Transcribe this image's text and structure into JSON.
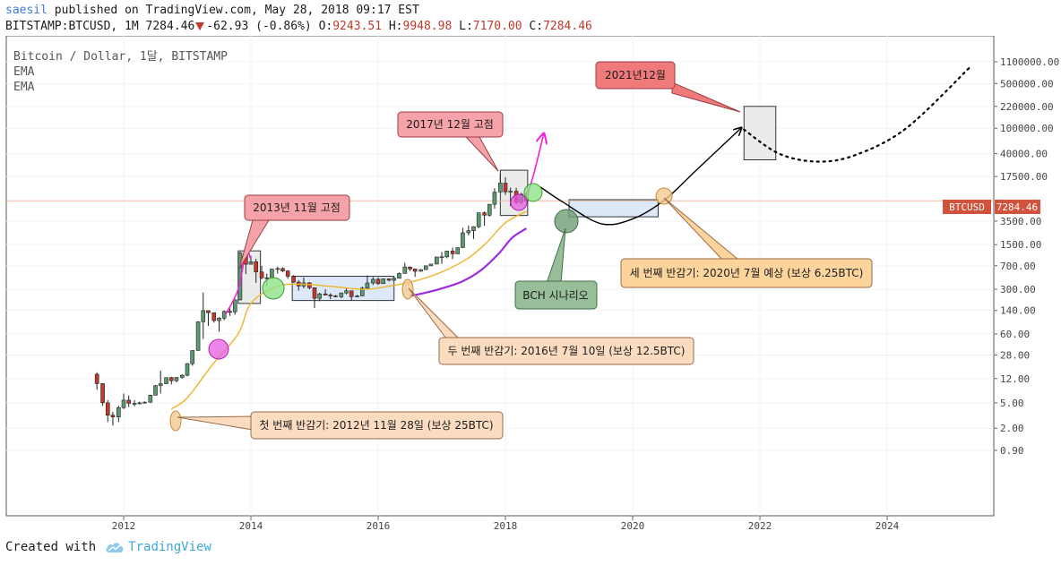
{
  "header": {
    "author": "saesil",
    "published_text": "published on TradingView.com, May 28, 2018 09:17 EST",
    "symbol_line": "BITSTAMP:BTCUSD, 1M 7284.46",
    "change": "-62.93 (-0.86%)",
    "o_label": "O:",
    "o_value": "9243.51",
    "h_label": "H:",
    "h_value": "9948.98",
    "l_label": "L:",
    "l_value": "7170.00",
    "c_label": "C:",
    "c_value": "7284.46"
  },
  "legend": {
    "title": "Bitcoin / Dollar, 1달, BITSTAMP",
    "ema1": "EMA",
    "ema2": "EMA"
  },
  "price_tag": {
    "symbol": "BTCUSD",
    "value": "7284.46"
  },
  "annotations": {
    "peak_2013": "2013년 11월 고점",
    "peak_2017": "2017년 12월 고점",
    "target_2021": "2021년12월",
    "halving_1": "첫 번째 반감기: 2012년 11월 28일 (보상 25BTC)",
    "halving_2": "두 번째 반감기: 2016년 7월 10일 (보상 12.5BTC)",
    "halving_3": "세 번째 반감기: 2020년 7월 예상 (보상 6.25BTC)",
    "bch": "BCH 시나리오"
  },
  "colors": {
    "up": "#5b9a6f",
    "down": "#c0392b",
    "ema_fast": "#f0b429",
    "ema_slow": "#9d2be0",
    "projection": "#ee22dd",
    "price_line": "#f2b8a0",
    "price_tag_bg": "#d2533c"
  },
  "footer": {
    "created_with": "Created with",
    "brand": "TradingView"
  },
  "chart_data": {
    "type": "candlestick",
    "title": "Bitcoin / Dollar, 1달, BITSTAMP",
    "y_scale": "log",
    "y_ticks": [
      "1100000.00",
      "500000.00",
      "220000.00",
      "100000.00",
      "40000.00",
      "17500.00",
      "7284.46",
      "3500.00",
      "1500.00",
      "700.00",
      "300.00",
      "140.00",
      "60.00",
      "28.00",
      "12.00",
      "5.00",
      "2.00",
      "0.90"
    ],
    "x_ticks": [
      "2012",
      "2014",
      "2016",
      "2018",
      "2020",
      "2022",
      "2024"
    ],
    "last_price": 7284.46,
    "candles": [
      {
        "t": 2011.58,
        "o": 14,
        "h": 15,
        "l": 8,
        "c": 10
      },
      {
        "t": 2011.67,
        "o": 10,
        "h": 10,
        "l": 4.5,
        "c": 5
      },
      {
        "t": 2011.75,
        "o": 5,
        "h": 5.5,
        "l": 2.5,
        "c": 3.2
      },
      {
        "t": 2011.83,
        "o": 3.2,
        "h": 3.6,
        "l": 2.2,
        "c": 3
      },
      {
        "t": 2011.92,
        "o": 3,
        "h": 4.5,
        "l": 2.5,
        "c": 4.2
      },
      {
        "t": 2012.0,
        "o": 4.2,
        "h": 7,
        "l": 4,
        "c": 5.5
      },
      {
        "t": 2012.08,
        "o": 5.5,
        "h": 6.5,
        "l": 4.3,
        "c": 4.9
      },
      {
        "t": 2012.17,
        "o": 4.9,
        "h": 5.5,
        "l": 4.4,
        "c": 4.9
      },
      {
        "t": 2012.25,
        "o": 4.9,
        "h": 5.2,
        "l": 4.7,
        "c": 5.0
      },
      {
        "t": 2012.33,
        "o": 5.0,
        "h": 5.3,
        "l": 4.9,
        "c": 5.1
      },
      {
        "t": 2012.42,
        "o": 5.1,
        "h": 6.7,
        "l": 5.0,
        "c": 6.6
      },
      {
        "t": 2012.5,
        "o": 6.6,
        "h": 9.5,
        "l": 6.5,
        "c": 9.3
      },
      {
        "t": 2012.58,
        "o": 9.3,
        "h": 16,
        "l": 7,
        "c": 10
      },
      {
        "t": 2012.67,
        "o": 10,
        "h": 12.5,
        "l": 9.8,
        "c": 12.4
      },
      {
        "t": 2012.75,
        "o": 12.4,
        "h": 12.8,
        "l": 9.7,
        "c": 11.1
      },
      {
        "t": 2012.83,
        "o": 11.1,
        "h": 12.6,
        "l": 10.5,
        "c": 12.5
      },
      {
        "t": 2012.92,
        "o": 12.5,
        "h": 14,
        "l": 12,
        "c": 13.5
      },
      {
        "t": 2013.0,
        "o": 13.5,
        "h": 21,
        "l": 13,
        "c": 20.5
      },
      {
        "t": 2013.08,
        "o": 20.5,
        "h": 33,
        "l": 19,
        "c": 33
      },
      {
        "t": 2013.17,
        "o": 33,
        "h": 95,
        "l": 33,
        "c": 93
      },
      {
        "t": 2013.25,
        "o": 93,
        "h": 266,
        "l": 50,
        "c": 139
      },
      {
        "t": 2013.33,
        "o": 139,
        "h": 140,
        "l": 80,
        "c": 129
      },
      {
        "t": 2013.42,
        "o": 129,
        "h": 130,
        "l": 90,
        "c": 97
      },
      {
        "t": 2013.5,
        "o": 97,
        "h": 110,
        "l": 65,
        "c": 106
      },
      {
        "t": 2013.58,
        "o": 106,
        "h": 140,
        "l": 98,
        "c": 135
      },
      {
        "t": 2013.67,
        "o": 135,
        "h": 150,
        "l": 115,
        "c": 133
      },
      {
        "t": 2013.75,
        "o": 133,
        "h": 210,
        "l": 120,
        "c": 205
      },
      {
        "t": 2013.83,
        "o": 205,
        "h": 1160,
        "l": 200,
        "c": 1110
      },
      {
        "t": 2013.92,
        "o": 1110,
        "h": 1160,
        "l": 520,
        "c": 740
      },
      {
        "t": 2014.0,
        "o": 740,
        "h": 1000,
        "l": 740,
        "c": 810
      },
      {
        "t": 2014.08,
        "o": 810,
        "h": 900,
        "l": 380,
        "c": 560
      },
      {
        "t": 2014.17,
        "o": 560,
        "h": 700,
        "l": 430,
        "c": 455
      },
      {
        "t": 2014.25,
        "o": 455,
        "h": 530,
        "l": 340,
        "c": 445
      },
      {
        "t": 2014.33,
        "o": 445,
        "h": 630,
        "l": 440,
        "c": 620
      },
      {
        "t": 2014.42,
        "o": 620,
        "h": 680,
        "l": 530,
        "c": 635
      },
      {
        "t": 2014.5,
        "o": 635,
        "h": 660,
        "l": 560,
        "c": 580
      },
      {
        "t": 2014.58,
        "o": 580,
        "h": 600,
        "l": 440,
        "c": 480
      },
      {
        "t": 2014.67,
        "o": 480,
        "h": 500,
        "l": 380,
        "c": 388
      },
      {
        "t": 2014.75,
        "o": 388,
        "h": 415,
        "l": 285,
        "c": 338
      },
      {
        "t": 2014.83,
        "o": 338,
        "h": 460,
        "l": 310,
        "c": 378
      },
      {
        "t": 2014.92,
        "o": 378,
        "h": 390,
        "l": 300,
        "c": 318
      },
      {
        "t": 2015.0,
        "o": 318,
        "h": 320,
        "l": 152,
        "c": 217
      },
      {
        "t": 2015.08,
        "o": 217,
        "h": 265,
        "l": 195,
        "c": 254
      },
      {
        "t": 2015.17,
        "o": 254,
        "h": 300,
        "l": 240,
        "c": 244
      },
      {
        "t": 2015.25,
        "o": 244,
        "h": 260,
        "l": 210,
        "c": 236
      },
      {
        "t": 2015.33,
        "o": 236,
        "h": 245,
        "l": 225,
        "c": 230
      },
      {
        "t": 2015.42,
        "o": 230,
        "h": 265,
        "l": 218,
        "c": 263
      },
      {
        "t": 2015.5,
        "o": 263,
        "h": 315,
        "l": 250,
        "c": 284
      },
      {
        "t": 2015.58,
        "o": 284,
        "h": 287,
        "l": 200,
        "c": 230
      },
      {
        "t": 2015.67,
        "o": 230,
        "h": 245,
        "l": 225,
        "c": 236
      },
      {
        "t": 2015.75,
        "o": 236,
        "h": 330,
        "l": 235,
        "c": 313
      },
      {
        "t": 2015.83,
        "o": 313,
        "h": 495,
        "l": 300,
        "c": 377
      },
      {
        "t": 2015.92,
        "o": 377,
        "h": 465,
        "l": 350,
        "c": 430
      },
      {
        "t": 2016.0,
        "o": 430,
        "h": 460,
        "l": 350,
        "c": 368
      },
      {
        "t": 2016.08,
        "o": 368,
        "h": 445,
        "l": 365,
        "c": 437
      },
      {
        "t": 2016.17,
        "o": 437,
        "h": 440,
        "l": 400,
        "c": 416
      },
      {
        "t": 2016.25,
        "o": 416,
        "h": 460,
        "l": 412,
        "c": 448
      },
      {
        "t": 2016.33,
        "o": 448,
        "h": 550,
        "l": 440,
        "c": 532
      },
      {
        "t": 2016.42,
        "o": 532,
        "h": 780,
        "l": 530,
        "c": 670
      },
      {
        "t": 2016.5,
        "o": 670,
        "h": 680,
        "l": 580,
        "c": 624
      },
      {
        "t": 2016.58,
        "o": 624,
        "h": 630,
        "l": 470,
        "c": 574
      },
      {
        "t": 2016.67,
        "o": 574,
        "h": 620,
        "l": 570,
        "c": 609
      },
      {
        "t": 2016.75,
        "o": 609,
        "h": 705,
        "l": 605,
        "c": 700
      },
      {
        "t": 2016.83,
        "o": 700,
        "h": 755,
        "l": 690,
        "c": 745
      },
      {
        "t": 2016.92,
        "o": 745,
        "h": 970,
        "l": 740,
        "c": 963
      },
      {
        "t": 2017.0,
        "o": 963,
        "h": 1150,
        "l": 750,
        "c": 968
      },
      {
        "t": 2017.08,
        "o": 968,
        "h": 1200,
        "l": 920,
        "c": 1190
      },
      {
        "t": 2017.17,
        "o": 1190,
        "h": 1350,
        "l": 890,
        "c": 1080
      },
      {
        "t": 2017.25,
        "o": 1080,
        "h": 1350,
        "l": 1070,
        "c": 1350
      },
      {
        "t": 2017.33,
        "o": 1350,
        "h": 2760,
        "l": 1340,
        "c": 2300
      },
      {
        "t": 2017.42,
        "o": 2300,
        "h": 2990,
        "l": 2100,
        "c": 2480
      },
      {
        "t": 2017.5,
        "o": 2480,
        "h": 2920,
        "l": 1840,
        "c": 2870
      },
      {
        "t": 2017.58,
        "o": 2870,
        "h": 4760,
        "l": 2700,
        "c": 4740
      },
      {
        "t": 2017.67,
        "o": 4740,
        "h": 4980,
        "l": 2970,
        "c": 4340
      },
      {
        "t": 2017.75,
        "o": 4340,
        "h": 6480,
        "l": 4110,
        "c": 6440
      },
      {
        "t": 2017.83,
        "o": 6440,
        "h": 11500,
        "l": 5500,
        "c": 10000
      },
      {
        "t": 2017.92,
        "o": 10000,
        "h": 19700,
        "l": 10000,
        "c": 13800
      },
      {
        "t": 2018.0,
        "o": 13800,
        "h": 17200,
        "l": 9000,
        "c": 10100
      },
      {
        "t": 2018.08,
        "o": 10100,
        "h": 11790,
        "l": 6000,
        "c": 10300
      },
      {
        "t": 2018.17,
        "o": 10300,
        "h": 11700,
        "l": 6500,
        "c": 6920
      },
      {
        "t": 2018.25,
        "o": 6920,
        "h": 9750,
        "l": 6430,
        "c": 9240
      },
      {
        "t": 2018.33,
        "o": 9243.51,
        "h": 9948.98,
        "l": 7170,
        "c": 7284.46
      }
    ],
    "ema_fast": [
      [
        2012.75,
        4
      ],
      [
        2013.0,
        6
      ],
      [
        2013.4,
        20
      ],
      [
        2013.8,
        60
      ],
      [
        2014.0,
        180
      ],
      [
        2014.4,
        330
      ],
      [
        2014.8,
        360
      ],
      [
        2015.3,
        330
      ],
      [
        2015.8,
        300
      ],
      [
        2016.2,
        340
      ],
      [
        2016.6,
        410
      ],
      [
        2017.0,
        560
      ],
      [
        2017.4,
        900
      ],
      [
        2017.7,
        1600
      ],
      [
        2018.0,
        3300
      ],
      [
        2018.33,
        5000
      ]
    ],
    "ema_slow": [
      [
        2016.5,
        235
      ],
      [
        2016.9,
        290
      ],
      [
        2017.3,
        390
      ],
      [
        2017.6,
        580
      ],
      [
        2017.9,
        1100
      ],
      [
        2018.1,
        1900
      ],
      [
        2018.33,
        2700
      ]
    ],
    "projection_2018": [
      [
        2018.33,
        8000
      ],
      [
        2018.45,
        20000
      ],
      [
        2018.6,
        80000
      ]
    ],
    "scenario_path": [
      [
        2018.55,
        12000
      ],
      [
        2018.9,
        7000
      ],
      [
        2019.5,
        3200
      ],
      [
        2020.0,
        3800
      ],
      [
        2020.5,
        7500
      ],
      [
        2021.0,
        22000
      ],
      [
        2021.7,
        100000
      ]
    ],
    "scenario_dotted": [
      [
        2021.75,
        95000
      ],
      [
        2022.3,
        40000
      ],
      [
        2022.9,
        30000
      ],
      [
        2023.5,
        38000
      ],
      [
        2024.3,
        100000
      ],
      [
        2025.3,
        900000
      ]
    ],
    "boxes": [
      {
        "x0": 2013.8,
        "x1": 2014.15,
        "ylo": 180,
        "yhi": 1200
      },
      {
        "x0": 2014.65,
        "x1": 2016.25,
        "ylo": 200,
        "yhi": 480
      },
      {
        "x0": 2017.92,
        "x1": 2018.35,
        "ylo": 4300,
        "yhi": 22000
      },
      {
        "x0": 2019.0,
        "x1": 2020.4,
        "ylo": 4100,
        "yhi": 7600
      },
      {
        "x0": 2021.75,
        "x1": 2022.25,
        "ylo": 32000,
        "yhi": 220000
      }
    ]
  }
}
